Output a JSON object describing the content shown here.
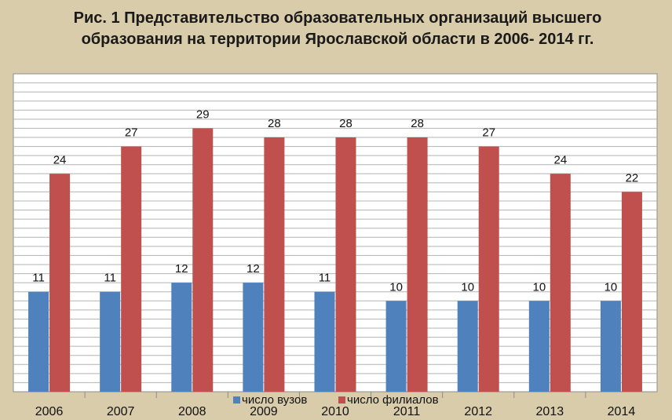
{
  "chart_data": {
    "type": "bar",
    "title": "Рис. 1 Представительство образовательных организаций высшего\nобразования на территории Ярославской области в 2006- 2014 гг.",
    "categories": [
      "2006",
      "2007",
      "2008",
      "2009",
      "2010",
      "2011",
      "2012",
      "2013",
      "2014"
    ],
    "series": [
      {
        "name": "число вузов",
        "color": "#4f81bd",
        "values": [
          11,
          11,
          12,
          12,
          11,
          10,
          10,
          10,
          10
        ]
      },
      {
        "name": "число филиалов",
        "color": "#c0504d",
        "values": [
          24,
          27,
          29,
          28,
          28,
          28,
          27,
          24,
          22
        ]
      }
    ],
    "ylim": [
      0,
      35
    ],
    "grid": true,
    "legend_position": "bottom-center",
    "data_labels": true,
    "y_tick_labels_shown": false
  }
}
